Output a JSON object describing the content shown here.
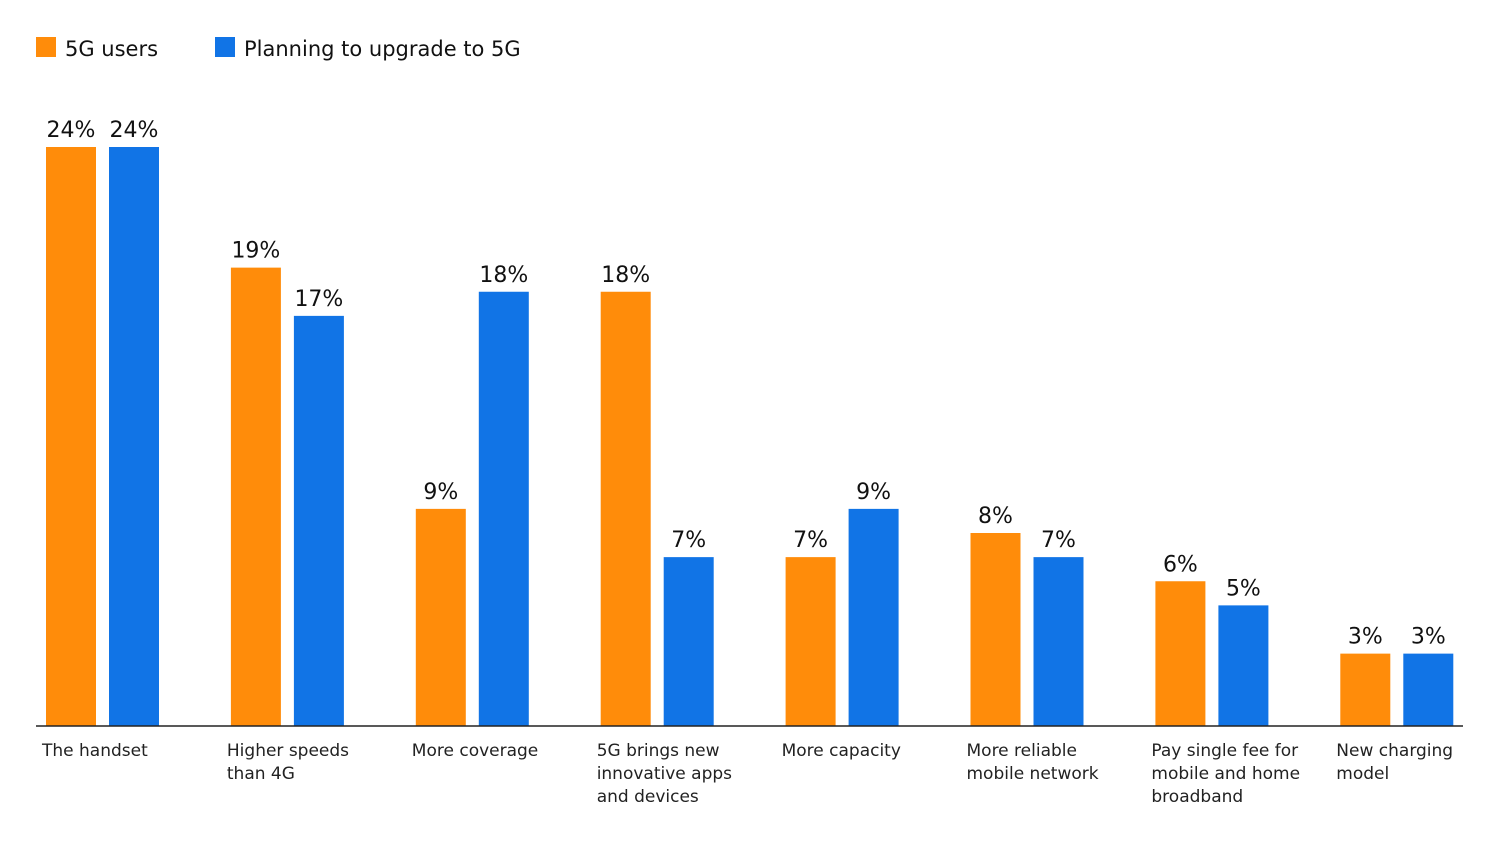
{
  "chart_data": {
    "type": "bar",
    "categories": [
      "The handset",
      "Higher speeds than 4G",
      "More coverage",
      "5G brings new innovative apps and devices",
      "More capacity",
      "More reliable mobile network",
      "Pay single fee for mobile and home broadband",
      "New charging model"
    ],
    "series": [
      {
        "name": "5G users",
        "color": "#ff8c0a",
        "values": [
          24,
          19,
          9,
          18,
          7,
          8,
          6,
          3
        ],
        "value_labels": [
          "24%",
          "19%",
          "9%",
          "18%",
          "7%",
          "8%",
          "6%",
          "3%"
        ]
      },
      {
        "name": "Planning to upgrade to 5G",
        "color": "#1174e6",
        "values": [
          24,
          17,
          18,
          7,
          9,
          7,
          5,
          3
        ],
        "value_labels": [
          "24%",
          "17%",
          "18%",
          "7%",
          "9%",
          "7%",
          "5%",
          "3%"
        ]
      }
    ],
    "legend": "top-left"
  }
}
